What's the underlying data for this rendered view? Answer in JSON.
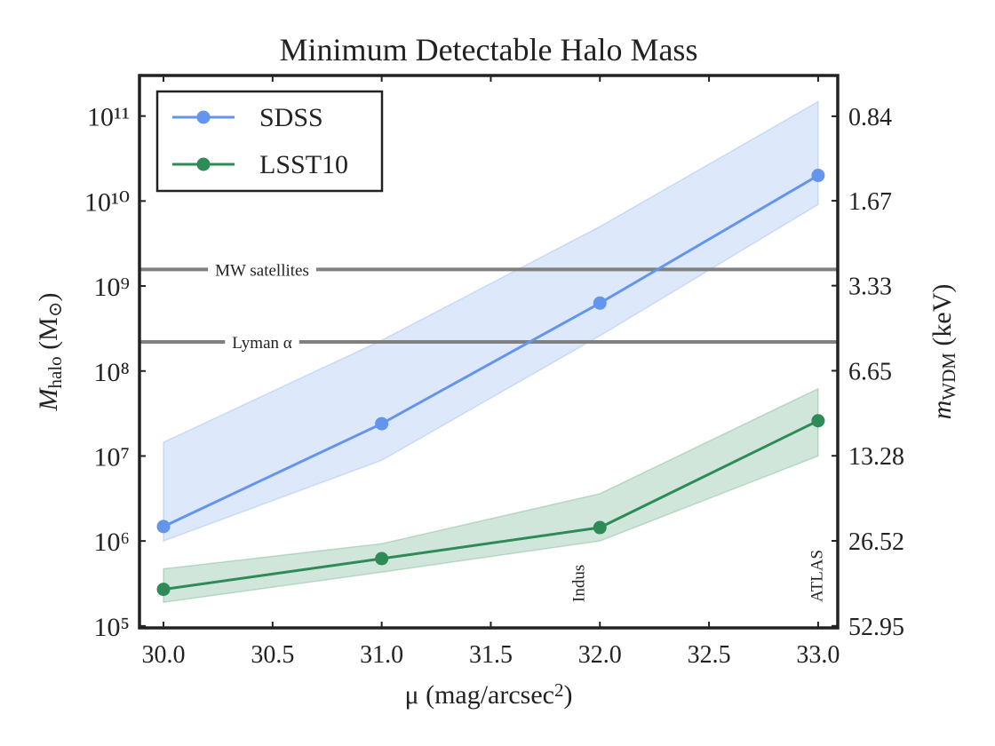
{
  "chart_data": {
    "type": "line",
    "title": "Minimum Detectable Halo Mass",
    "xlabel": [
      "μ (mag/arcsec",
      "2",
      ")"
    ],
    "ylabel": [
      "M",
      "halo",
      " (M",
      "⊙",
      ")"
    ],
    "y2label": [
      "m",
      "WDM",
      " (keV)"
    ],
    "x": [
      30.0,
      31.0,
      32.0,
      33.0
    ],
    "xlim": [
      29.89,
      33.09
    ],
    "xticks": [
      {
        "value": 30.0,
        "label": "30.0"
      },
      30.5,
      {
        "value": 31.0,
        "label": "31.0"
      },
      31.5,
      {
        "value": 32.0,
        "label": "32.0"
      },
      32.5,
      {
        "value": 33.0,
        "label": "33.0"
      }
    ],
    "ylim": [
      95000,
      300000000000
    ],
    "yscale": "log",
    "yticks": [
      {
        "value": 100000,
        "label": "10⁵"
      },
      {
        "value": 1000000,
        "label": "10⁶"
      },
      {
        "value": 10000000,
        "label": "10⁷"
      },
      {
        "value": 100000000,
        "label": "10⁸"
      },
      {
        "value": 1000000000,
        "label": "10⁹"
      },
      {
        "value": 10000000000,
        "label": "10¹⁰"
      },
      {
        "value": 100000000000,
        "label": "10¹¹"
      }
    ],
    "y2lim": [
      53.8,
      0.603
    ],
    "y2scale": "log",
    "y2ticks": [
      52.95,
      26.52,
      13.28,
      6.65,
      3.33,
      1.67,
      0.84
    ],
    "legend": "upper left",
    "series": [
      {
        "name": "SDSS",
        "color": "#6495ed",
        "values": [
          1480000,
          24000000,
          630000000,
          20000000000
        ],
        "lower": [
          1000000,
          8900000,
          260000000,
          9100000000
        ],
        "upper": [
          14500000,
          230000000,
          5000000000,
          148000000000
        ]
      },
      {
        "name": "LSST10",
        "color": "#2e8b57",
        "values": [
          270000,
          620000,
          1440000,
          26000000
        ],
        "lower": [
          190000,
          430000,
          1000000,
          10000000
        ],
        "upper": [
          470000,
          930000,
          3600000,
          62000000
        ]
      }
    ],
    "hlines": [
      {
        "value": 1570000000,
        "label": "MW satellites",
        "color": "#808080"
      },
      {
        "value": 220000000,
        "label": "Lyman α",
        "color": "#808080"
      }
    ],
    "annotations": [
      {
        "x": 31.9,
        "text": "Indus"
      },
      {
        "x": 32.99,
        "text": "ATLAS"
      }
    ]
  }
}
